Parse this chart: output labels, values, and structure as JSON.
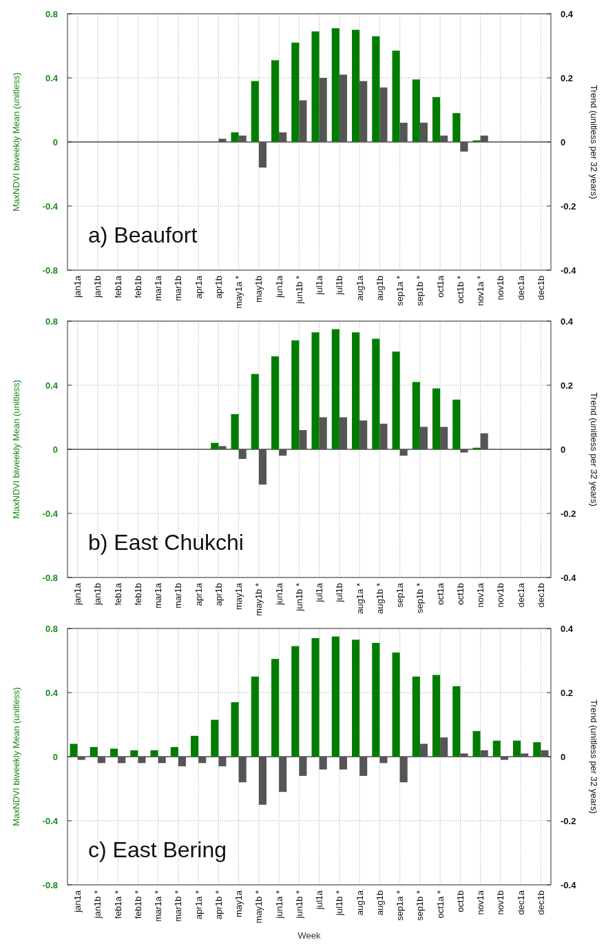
{
  "chart_data": [
    {
      "type": "bar",
      "title": "a) Beaufort",
      "ylabel": "MaxNDVI biweekly Mean (unitless)",
      "y2label": "Trend (unitless per 32 years)",
      "categories": [
        "jan1a",
        "jan1b",
        "feb1a",
        "feb1b",
        "mar1a",
        "mar1b",
        "apr1a",
        "apr1b",
        "may1a *",
        "may1b",
        "jun1a",
        "jun1b *",
        "jul1a",
        "jul1b",
        "aug1a",
        "aug1b",
        "sep1a *",
        "sep1b *",
        "oct1a",
        "oct1b *",
        "nov1a *",
        "nov1b",
        "dec1a",
        "dec1b"
      ],
      "series": [
        {
          "color": "#007d00",
          "values": [
            null,
            null,
            null,
            null,
            null,
            null,
            null,
            null,
            0.06,
            0.38,
            0.51,
            0.62,
            0.69,
            0.71,
            0.7,
            0.66,
            0.57,
            0.39,
            0.28,
            0.18,
            0.01,
            null,
            null,
            null
          ]
        },
        {
          "color": "#555555",
          "axis": "y2",
          "values": [
            null,
            null,
            null,
            null,
            null,
            null,
            null,
            0.01,
            0.02,
            -0.08,
            0.03,
            0.13,
            0.2,
            0.21,
            0.19,
            0.17,
            0.06,
            0.06,
            0.02,
            -0.03,
            0.02,
            null,
            null,
            null
          ]
        }
      ],
      "ylim": [
        -0.8,
        0.8
      ],
      "yticks": [
        -0.8,
        -0.4,
        0,
        0.4,
        0.8
      ],
      "y2lim": [
        -0.4,
        0.4
      ],
      "y2ticks": [
        -0.4,
        -0.2,
        0,
        0.2,
        0.4
      ],
      "grid": true,
      "ref_lines": [
        {
          "axis": "y",
          "value": 0,
          "color": "#000000"
        }
      ]
    },
    {
      "type": "bar",
      "title": "b) East Chukchi",
      "ylabel": "MaxNDVI biweekly Mean (unitless)",
      "y2label": "Trend (unitless per 32 years)",
      "categories": [
        "jan1a",
        "jan1b",
        "feb1a",
        "feb1b",
        "mar1a",
        "mar1b",
        "apr1a",
        "apr1b",
        "may1a",
        "may1b *",
        "jun1a",
        "jun1b *",
        "jul1a",
        "jul1b",
        "aug1a *",
        "aug1b *",
        "sep1a",
        "sep1b *",
        "oct1a",
        "oct1b",
        "nov1a",
        "nov1b",
        "dec1a",
        "dec1b"
      ],
      "series": [
        {
          "color": "#007d00",
          "values": [
            null,
            null,
            null,
            null,
            null,
            null,
            null,
            0.04,
            0.22,
            0.47,
            0.58,
            0.68,
            0.73,
            0.75,
            0.73,
            0.69,
            0.61,
            0.42,
            0.38,
            0.31,
            0.01,
            null,
            null,
            null
          ]
        },
        {
          "color": "#555555",
          "axis": "y2",
          "values": [
            null,
            null,
            null,
            null,
            null,
            null,
            null,
            0.01,
            -0.03,
            -0.11,
            -0.02,
            0.06,
            0.1,
            0.1,
            0.09,
            0.08,
            -0.02,
            0.07,
            0.07,
            -0.01,
            0.05,
            null,
            null,
            null
          ]
        }
      ],
      "ylim": [
        -0.8,
        0.8
      ],
      "yticks": [
        -0.8,
        -0.4,
        0,
        0.4,
        0.8
      ],
      "y2lim": [
        -0.4,
        0.4
      ],
      "y2ticks": [
        -0.4,
        -0.2,
        0,
        0.2,
        0.4
      ],
      "grid": true,
      "ref_lines": [
        {
          "axis": "y",
          "value": 0,
          "color": "#000000"
        }
      ]
    },
    {
      "type": "bar",
      "title": "c) East Bering",
      "xlabel": "Week",
      "ylabel": "MaxNDVI biweekly Mean (unitless)",
      "y2label": "Trend (unitless per 32 years)",
      "categories": [
        "jan1a",
        "jan1b *",
        "feb1a *",
        "feb1b *",
        "mar1a *",
        "mar1b *",
        "apr1a *",
        "apr1b *",
        "may1a",
        "may1b *",
        "jun1a *",
        "jun1b *",
        "jul1a",
        "jul1b *",
        "aug1a",
        "aug1b",
        "sep1a *",
        "sep1b *",
        "oct1a *",
        "oct1b",
        "nov1a",
        "nov1b",
        "dec1a",
        "dec1b"
      ],
      "series": [
        {
          "color": "#007d00",
          "values": [
            0.08,
            0.06,
            0.05,
            0.04,
            0.04,
            0.06,
            0.13,
            0.23,
            0.34,
            0.5,
            0.61,
            0.69,
            0.74,
            0.75,
            0.73,
            0.71,
            0.65,
            0.5,
            0.51,
            0.44,
            0.16,
            0.1,
            0.1,
            0.09
          ]
        },
        {
          "color": "#555555",
          "axis": "y2",
          "values": [
            -0.01,
            -0.02,
            -0.02,
            -0.02,
            -0.02,
            -0.03,
            -0.02,
            -0.03,
            -0.08,
            -0.15,
            -0.11,
            -0.06,
            -0.04,
            -0.04,
            -0.06,
            -0.02,
            -0.08,
            0.04,
            0.06,
            0.01,
            0.02,
            -0.01,
            0.01,
            0.02
          ]
        }
      ],
      "ylim": [
        -0.8,
        0.8
      ],
      "yticks": [
        -0.8,
        -0.4,
        0,
        0.4,
        0.8
      ],
      "y2lim": [
        -0.4,
        0.4
      ],
      "y2ticks": [
        -0.4,
        -0.2,
        0,
        0.2,
        0.4
      ],
      "grid": true,
      "ref_lines": [
        {
          "axis": "y",
          "value": 0,
          "color": "#000000"
        }
      ]
    }
  ]
}
